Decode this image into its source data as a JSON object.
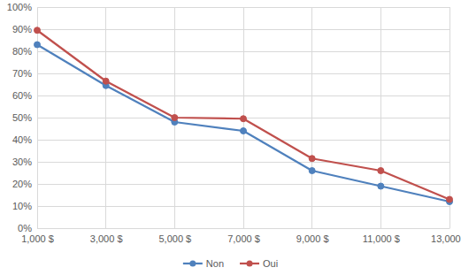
{
  "chart_data": {
    "type": "line",
    "categories": [
      "1,000 $",
      "3,000 $",
      "5,000 $",
      "7,000 $",
      "9,000 $",
      "11,000 $",
      "13,000 $"
    ],
    "series": [
      {
        "name": "Non",
        "color": "#4f81bd",
        "marker": "circle",
        "values": [
          83,
          64.5,
          48,
          44,
          26,
          19,
          12
        ]
      },
      {
        "name": "Oui",
        "color": "#c0504d",
        "marker": "circle",
        "values": [
          89.5,
          66.5,
          50,
          49.5,
          31.5,
          26,
          13
        ]
      }
    ],
    "ylim": [
      0,
      100
    ],
    "yticks": [
      {
        "value": 0,
        "label": "0%"
      },
      {
        "value": 10,
        "label": "10%"
      },
      {
        "value": 20,
        "label": "20%"
      },
      {
        "value": 30,
        "label": "30%"
      },
      {
        "value": 40,
        "label": "40%"
      },
      {
        "value": 50,
        "label": "50%"
      },
      {
        "value": 60,
        "label": "60%"
      },
      {
        "value": 70,
        "label": "70%"
      },
      {
        "value": 80,
        "label": "80%"
      },
      {
        "value": 90,
        "label": "90%"
      },
      {
        "value": 100,
        "label": "100%"
      }
    ],
    "grid": true,
    "legend": "bottom"
  }
}
